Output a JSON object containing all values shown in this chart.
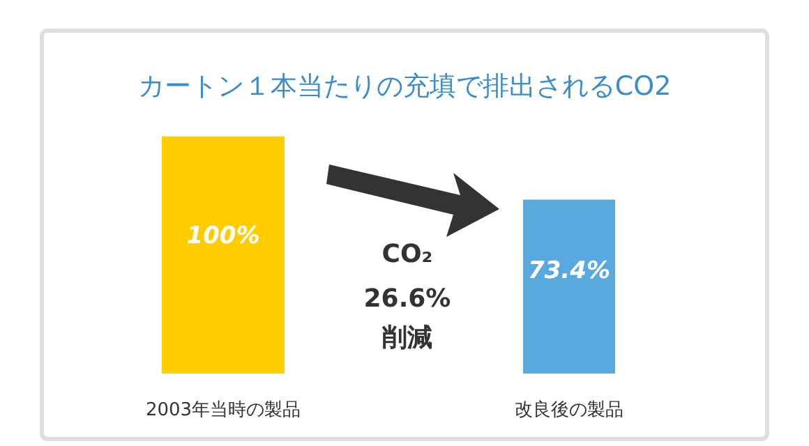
{
  "chart_data": {
    "type": "bar",
    "title": "カートン１本当たりの充填で排出されるCO2",
    "categories": [
      "2003年当時の製品",
      "改良後の製品"
    ],
    "values": [
      100,
      73.4
    ],
    "colors": [
      "#ffcc00",
      "#5aa8e0"
    ],
    "value_labels": [
      "100%",
      "73.4%"
    ],
    "annotations": [
      "CO₂",
      "26.6%",
      "削減"
    ]
  }
}
